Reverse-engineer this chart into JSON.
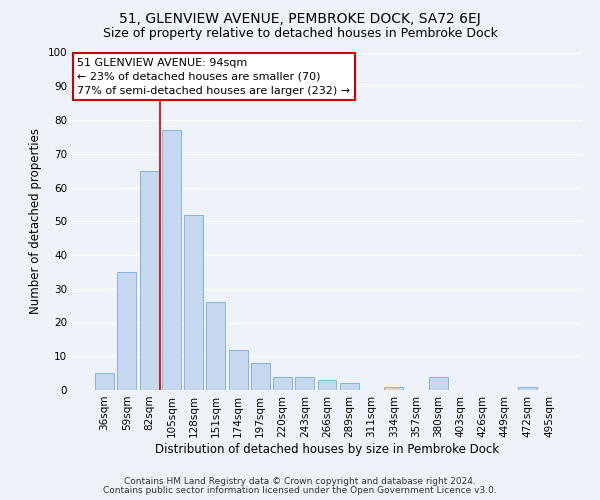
{
  "title": "51, GLENVIEW AVENUE, PEMBROKE DOCK, SA72 6EJ",
  "subtitle": "Size of property relative to detached houses in Pembroke Dock",
  "xlabel": "Distribution of detached houses by size in Pembroke Dock",
  "ylabel": "Number of detached properties",
  "footer_line1": "Contains HM Land Registry data © Crown copyright and database right 2024.",
  "footer_line2": "Contains public sector information licensed under the Open Government Licence v3.0.",
  "bar_labels": [
    "36sqm",
    "59sqm",
    "82sqm",
    "105sqm",
    "128sqm",
    "151sqm",
    "174sqm",
    "197sqm",
    "220sqm",
    "243sqm",
    "266sqm",
    "289sqm",
    "311sqm",
    "334sqm",
    "357sqm",
    "380sqm",
    "403sqm",
    "426sqm",
    "449sqm",
    "472sqm",
    "495sqm"
  ],
  "bar_values": [
    5,
    35,
    65,
    77,
    52,
    26,
    12,
    8,
    4,
    4,
    3,
    2,
    0,
    1,
    0,
    4,
    0,
    0,
    0,
    1,
    0
  ],
  "bar_color": "#c5d8f0",
  "bar_edge_color": "#7aadd4",
  "ylim": [
    0,
    100
  ],
  "yticks": [
    0,
    10,
    20,
    30,
    40,
    50,
    60,
    70,
    80,
    90,
    100
  ],
  "vline_color": "#cc0000",
  "annotation_title": "51 GLENVIEW AVENUE: 94sqm",
  "annotation_line1": "← 23% of detached houses are smaller (70)",
  "annotation_line2": "77% of semi-detached houses are larger (232) →",
  "annotation_box_color": "#ffffff",
  "annotation_box_edge": "#cc0000",
  "background_color": "#eef2f9",
  "grid_color": "#ffffff",
  "title_fontsize": 10,
  "subtitle_fontsize": 9,
  "axis_label_fontsize": 8.5,
  "tick_fontsize": 7.5,
  "annotation_fontsize": 8,
  "footer_fontsize": 6.5
}
